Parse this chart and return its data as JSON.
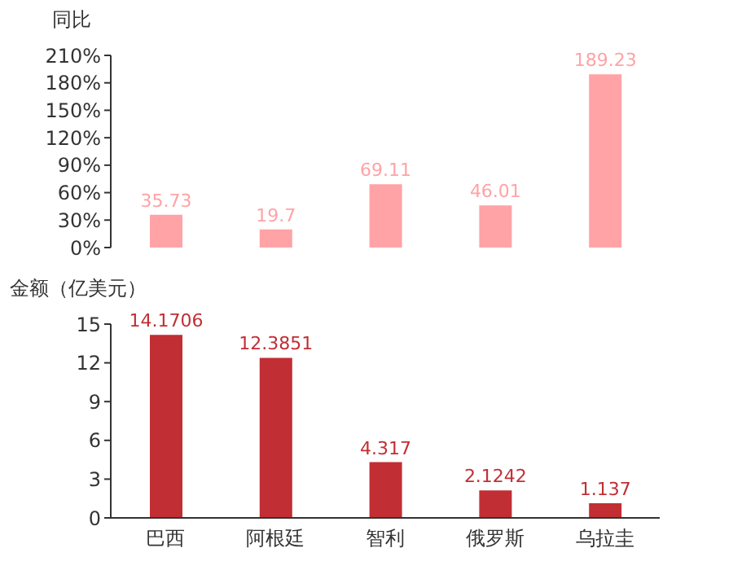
{
  "chart_data": [
    {
      "type": "bar",
      "ylabel": "同比",
      "categories": [
        null,
        null,
        null,
        null,
        null
      ],
      "values": [
        35.73,
        19.7,
        69.11,
        46.01,
        189.23
      ],
      "color": "#ffa3a6",
      "ylim": [
        0,
        210
      ],
      "yticks": [
        {
          "value": 0,
          "label": "0%"
        },
        {
          "value": 30,
          "label": "30%"
        },
        {
          "value": 60,
          "label": "60%"
        },
        {
          "value": 90,
          "label": "90%"
        },
        {
          "value": 120,
          "label": "120%"
        },
        {
          "value": 150,
          "label": "150%"
        },
        {
          "value": 180,
          "label": "180%"
        },
        {
          "value": 210,
          "label": "210%"
        }
      ],
      "data_labels": true,
      "tick_labels": "y",
      "grid": false,
      "legend": false
    },
    {
      "type": "bar",
      "ylabel": "金额（亿美元）",
      "categories": [
        "巴西",
        "阿根廷",
        "智利",
        "俄罗斯",
        "乌拉圭"
      ],
      "values": [
        14.1706,
        12.3851,
        4.317,
        2.1242,
        1.137
      ],
      "color": "#c12e34",
      "ylim": [
        0,
        15
      ],
      "yticks": [
        0,
        3,
        6,
        9,
        12,
        15
      ],
      "data_labels": true,
      "grid": false,
      "legend": false
    }
  ]
}
